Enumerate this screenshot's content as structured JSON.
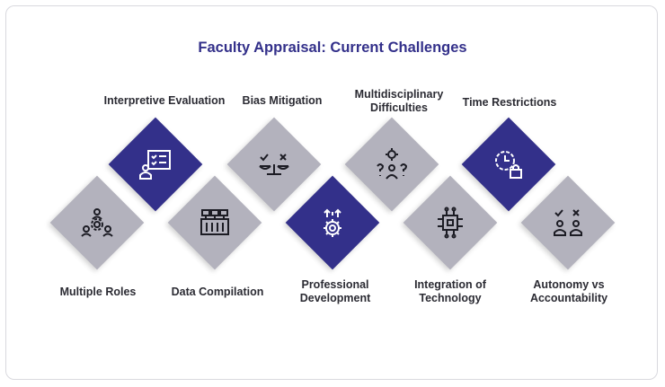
{
  "title": "Faculty Appraisal: Current Challenges",
  "colors": {
    "navy": "#33308a",
    "grey": "#b3b2bd",
    "title": "#33308a"
  },
  "items": [
    {
      "label": "Multiple Roles",
      "icon": "multiple-roles-icon"
    },
    {
      "label": "Interpretive Evaluation",
      "icon": "presentation-checklist-icon"
    },
    {
      "label": "Data Compilation",
      "icon": "data-compilation-icon"
    },
    {
      "label": "Bias Mitigation",
      "icon": "balance-scale-icon"
    },
    {
      "label": "Professional Development",
      "icon": "gear-growth-icon"
    },
    {
      "label": "Multidisciplinary Difficulties",
      "icon": "gear-question-person-icon"
    },
    {
      "label": "Integration of Technology",
      "icon": "chip-icon"
    },
    {
      "label": "Time Restrictions",
      "icon": "clock-lock-icon"
    },
    {
      "label": "Autonomy vs Accountability",
      "icon": "people-check-cross-icon"
    }
  ]
}
